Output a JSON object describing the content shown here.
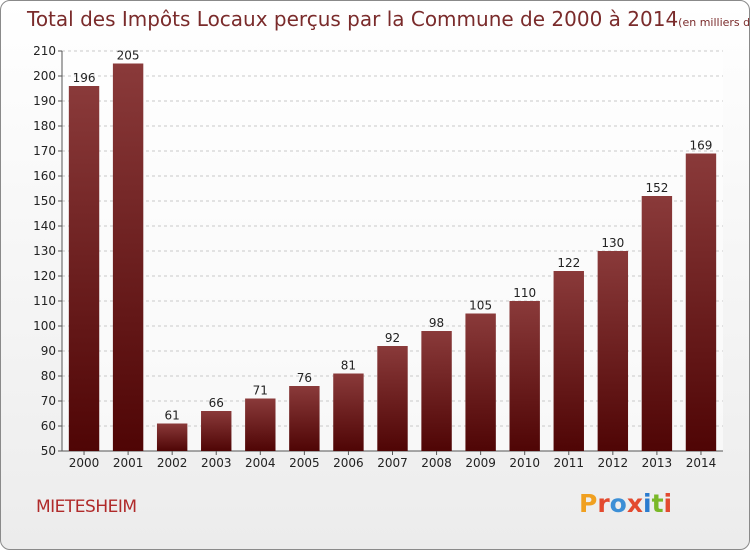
{
  "header": {
    "title": "Total des Impôts Locaux perçus par la Commune de 2000 à 2014",
    "unit": "(en milliers d'€)"
  },
  "footer": {
    "commune": "MIETESHEIM",
    "logo": {
      "text": "Proxiti",
      "colors": [
        "#f0a020",
        "#e34a2f",
        "#3c8fd6",
        "#e34a2f",
        "#2b7ccf",
        "#7ab828",
        "#e34a2f"
      ]
    }
  },
  "chart_data": {
    "type": "bar",
    "categories": [
      "2000",
      "2001",
      "2002",
      "2003",
      "2004",
      "2005",
      "2006",
      "2007",
      "2008",
      "2009",
      "2010",
      "2011",
      "2012",
      "2013",
      "2014"
    ],
    "values": [
      196,
      205,
      61,
      66,
      71,
      76,
      81,
      92,
      98,
      105,
      110,
      122,
      130,
      152,
      169
    ],
    "ylim": [
      50,
      210
    ],
    "yticks": [
      50,
      60,
      70,
      80,
      90,
      100,
      110,
      120,
      130,
      140,
      150,
      160,
      170,
      180,
      190,
      200,
      210
    ],
    "grid": true,
    "bar_colors": {
      "top": "#8a3a3a",
      "bottom": "#4f0505"
    }
  }
}
